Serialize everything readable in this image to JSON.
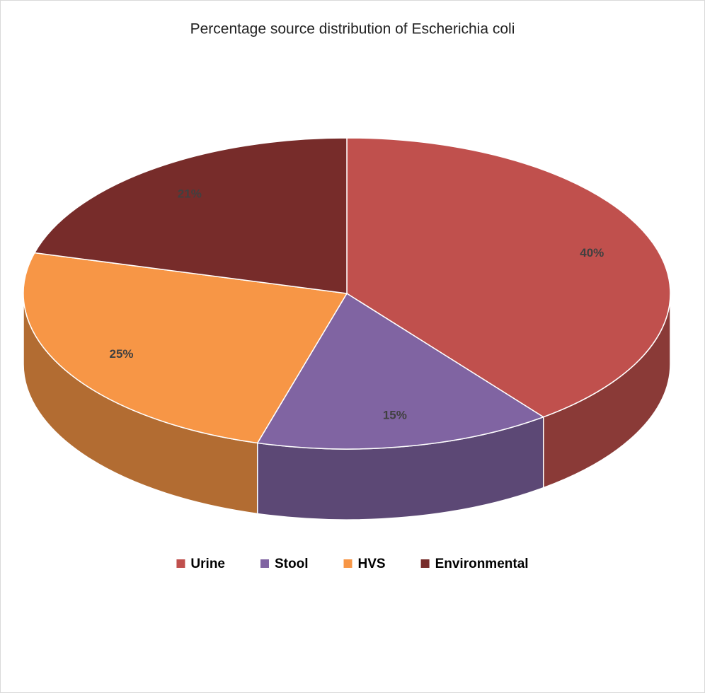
{
  "chart_data": {
    "type": "pie3d",
    "title": "Percentage source distribution of Escherichia coli",
    "categories": [
      "Urine",
      "Stool",
      "HVS",
      "Environmental"
    ],
    "values": [
      40,
      15,
      25,
      21
    ],
    "value_labels": [
      "40%",
      "15%",
      "25%",
      "21%"
    ],
    "colors": [
      "#c0504d",
      "#8064a2",
      "#f79646",
      "#772c2a"
    ],
    "legend": "bottom"
  }
}
